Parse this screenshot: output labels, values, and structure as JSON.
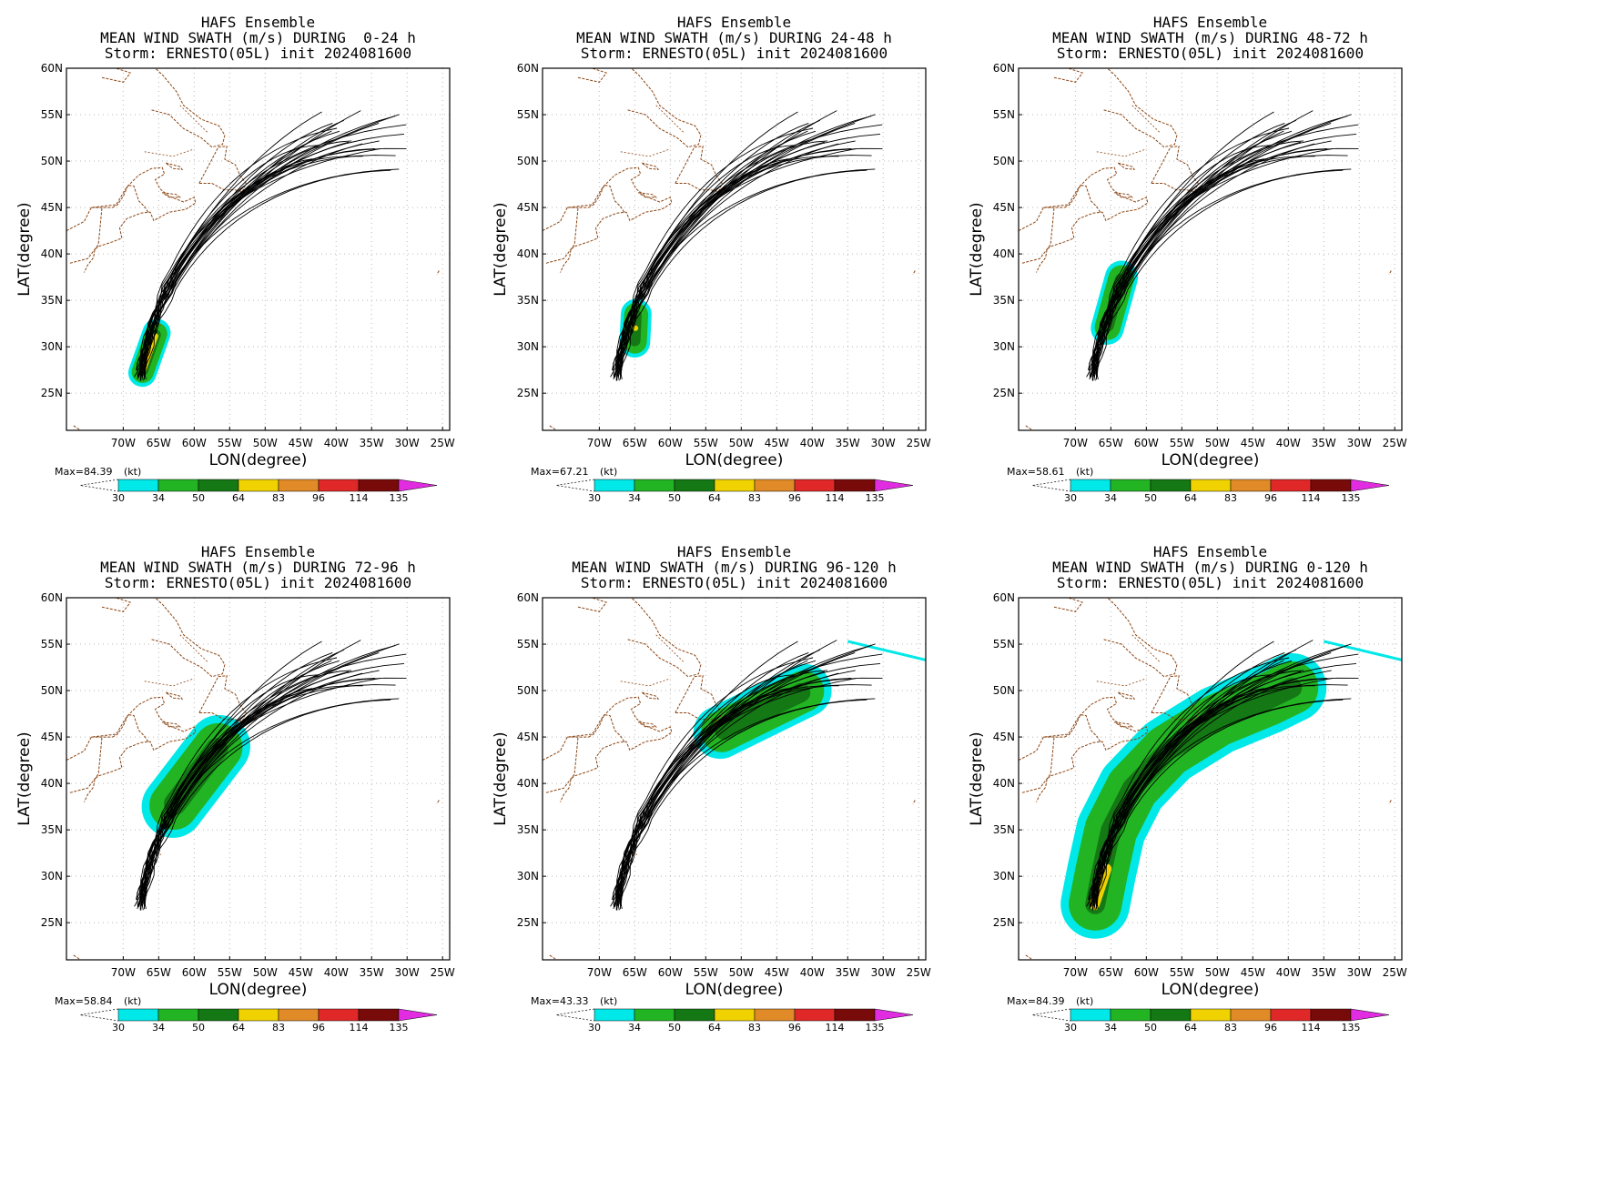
{
  "figure": {
    "map_extent": {
      "lon": [
        -78,
        -24
      ],
      "lat": [
        21,
        60
      ]
    },
    "x_ticks": [
      "70W",
      "65W",
      "60W",
      "55W",
      "50W",
      "45W",
      "40W",
      "35W",
      "30W",
      "25W"
    ],
    "x_tick_values": [
      -70,
      -65,
      -60,
      -55,
      -50,
      -45,
      -40,
      -35,
      -30,
      -25
    ],
    "y_ticks": [
      "25N",
      "30N",
      "35N",
      "40N",
      "45N",
      "50N",
      "55N",
      "60N"
    ],
    "y_tick_values": [
      25,
      30,
      35,
      40,
      45,
      50,
      55,
      60
    ],
    "xlabel": "LON(degree)",
    "ylabel": "LAT(degree)",
    "colorbar": {
      "levels": [
        "30",
        "34",
        "50",
        "64",
        "83",
        "96",
        "114",
        "135"
      ],
      "colors": [
        "#00e8e8",
        "#22b422",
        "#147814",
        "#f0d200",
        "#e08a28",
        "#e02828",
        "#780a0a",
        "#e22ce2"
      ],
      "unit": "(kt)"
    },
    "track_color": "#000000",
    "coast_color": "#8b4513",
    "grid": true,
    "panels": [
      {
        "title1": "HAFS Ensemble",
        "title2": "MEAN WIND SWATH (m/s) DURING  0-24 h",
        "title3": "Storm: ERNESTO(05L) init 2024081600",
        "max_label": "Max=84.39",
        "swath": {
          "start": [
            -67.3,
            27.2
          ],
          "end": [
            -65.3,
            31.5
          ],
          "outer_lon": [
            -69.5,
            -63.1
          ],
          "outer_lat": [
            25.0,
            33.5
          ]
        }
      },
      {
        "title1": "HAFS Ensemble",
        "title2": "MEAN WIND SWATH (m/s) DURING 24-48 h",
        "title3": "Storm: ERNESTO(05L) init 2024081600",
        "max_label": "Max=67.21",
        "swath": {
          "start": [
            -65.0,
            30.5
          ],
          "end": [
            -64.8,
            33.5
          ],
          "outer_lon": [
            -68.7,
            -61.7
          ],
          "outer_lat": [
            28.2,
            35.8
          ]
        }
      },
      {
        "title1": "HAFS Ensemble",
        "title2": "MEAN WIND SWATH (m/s) DURING 48-72 h",
        "title3": "Storm: ERNESTO(05L) init 2024081600",
        "max_label": "Max=58.61",
        "swath": {
          "start": [
            -65.5,
            32.0
          ],
          "end": [
            -63.5,
            37.5
          ],
          "outer_lon": [
            -68.5,
            -61.0
          ],
          "outer_lat": [
            31.0,
            39.0
          ]
        }
      },
      {
        "title1": "HAFS Ensemble",
        "title2": "MEAN WIND SWATH (m/s) DURING 72-96 h",
        "title3": "Storm: ERNESTO(05L) init 2024081600",
        "max_label": "Max=58.84",
        "swath": {
          "start": [
            -63.0,
            37.5
          ],
          "end": [
            -56.5,
            44.0
          ],
          "outer_lon": [
            -66.5,
            -52.3
          ],
          "outer_lat": [
            35.0,
            46.3
          ]
        }
      },
      {
        "title1": "HAFS Ensemble",
        "title2": "MEAN WIND SWATH (m/s) DURING 96-120 h",
        "title3": "Storm: ERNESTO(05L) init 2024081600",
        "max_label": "Max=43.33",
        "swath": {
          "start": [
            -53.0,
            45.5
          ],
          "end": [
            -41.0,
            50.0
          ],
          "outer_lon": [
            -57.5,
            -37.0
          ],
          "outer_lat": [
            42.8,
            52.0
          ]
        }
      },
      {
        "title1": "HAFS Ensemble",
        "title2": "MEAN WIND SWATH (m/s) DURING 0-120 h",
        "title3": "Storm: ERNESTO(05L) init 2024081600",
        "max_label": "Max=84.39",
        "swath": {
          "start": [
            -67.3,
            27.0
          ],
          "end": [
            -41.0,
            50.0
          ],
          "outer_lon": [
            -69.5,
            -37.0
          ],
          "outer_lat": [
            25.0,
            52.0
          ]
        }
      }
    ]
  }
}
